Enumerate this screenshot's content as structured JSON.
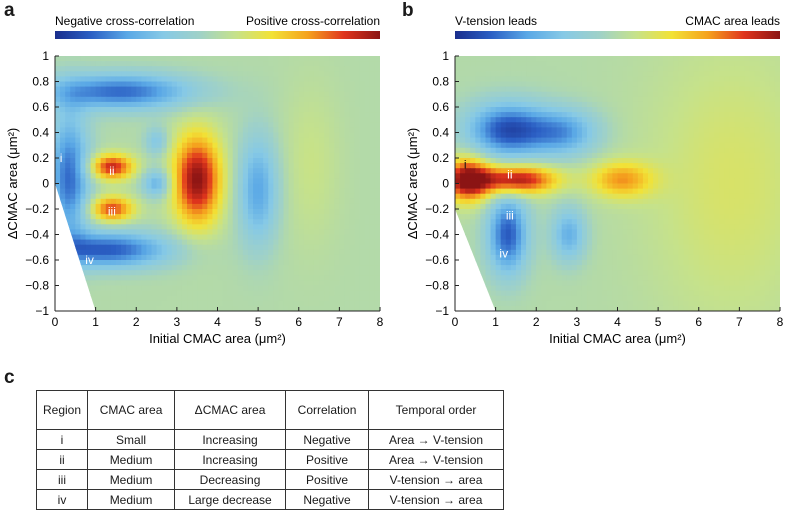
{
  "panels": {
    "a": {
      "letter": "a"
    },
    "b": {
      "letter": "b"
    },
    "c": {
      "letter": "c"
    }
  },
  "colors": {
    "cmap": [
      "#1a2e8c",
      "#2b5fc4",
      "#5aa8e6",
      "#86c9e6",
      "#9fd1c8",
      "#c6e28a",
      "#f2e236",
      "#f5a21e",
      "#e0351d",
      "#8b1414"
    ],
    "background": "#86c9e6"
  },
  "chart_data": [
    {
      "type": "heatmap",
      "panel": "a",
      "colorbar": {
        "left_label": "Negative cross-correlation",
        "right_label": "Positive cross-correlation"
      },
      "xlabel": "Initial CMAC area (μm²)",
      "ylabel": "ΔCMAC area (μm²)",
      "xlim": [
        0,
        8
      ],
      "ylim": [
        -1,
        1
      ],
      "xticks": [
        "0",
        "1",
        "2",
        "3",
        "4",
        "5",
        "6",
        "7",
        "8"
      ],
      "yticks": [
        "−1",
        "−0.8",
        "−0.6",
        "−0.4",
        "−0.2",
        "0",
        "0.2",
        "0.4",
        "0.6",
        "0.8",
        "1"
      ],
      "value_range": [
        -1,
        1
      ],
      "features": [
        {
          "x": 1.6,
          "y": 0.72,
          "value": -0.75,
          "sx": 1.3,
          "sy": 0.1
        },
        {
          "x": 0.35,
          "y": 0.05,
          "value": -0.75,
          "sx": 0.35,
          "sy": 0.35
        },
        {
          "x": 1.3,
          "y": -0.52,
          "value": -0.8,
          "sx": 1.1,
          "sy": 0.1
        },
        {
          "x": 1.4,
          "y": 0.13,
          "value": 0.85,
          "sx": 0.38,
          "sy": 0.07
        },
        {
          "x": 1.4,
          "y": -0.2,
          "value": 0.75,
          "sx": 0.38,
          "sy": 0.07
        },
        {
          "x": 2.5,
          "y": 0.0,
          "value": -0.5,
          "sx": 0.25,
          "sy": 0.08
        },
        {
          "x": 2.5,
          "y": 0.33,
          "value": -0.35,
          "sx": 0.2,
          "sy": 0.08
        },
        {
          "x": 3.5,
          "y": 0.03,
          "value": 1.0,
          "sx": 0.42,
          "sy": 0.25
        },
        {
          "x": 5.0,
          "y": -0.05,
          "value": -0.55,
          "sx": 0.35,
          "sy": 0.3
        },
        {
          "x": 6.3,
          "y": 0.15,
          "value": 0.12,
          "sx": 0.5,
          "sy": 0.45
        }
      ],
      "region_labels": [
        {
          "text": "i",
          "x": 0.15,
          "y": 0.2
        },
        {
          "text": "ii",
          "x": 1.4,
          "y": 0.1
        },
        {
          "text": "iii",
          "x": 1.4,
          "y": -0.22
        },
        {
          "text": "iv",
          "x": 0.85,
          "y": -0.6
        }
      ]
    },
    {
      "type": "heatmap",
      "panel": "b",
      "colorbar": {
        "left_label": "V-tension leads",
        "right_label": "CMAC area leads"
      },
      "xlabel": "Initial CMAC area (μm²)",
      "ylabel": "ΔCMAC area (μm²)",
      "xlim": [
        0,
        8
      ],
      "ylim": [
        -1,
        1
      ],
      "xticks": [
        "0",
        "1",
        "2",
        "3",
        "4",
        "5",
        "6",
        "7",
        "8"
      ],
      "yticks": [
        "−1",
        "−0.8",
        "−0.6",
        "−0.4",
        "−0.2",
        "0",
        "0.2",
        "0.4",
        "0.6",
        "0.8",
        "1"
      ],
      "value_range": [
        -1,
        1
      ],
      "features": [
        {
          "x": 0.3,
          "y": 0.03,
          "value": 1.0,
          "sx": 0.4,
          "sy": 0.12
        },
        {
          "x": 1.5,
          "y": 0.03,
          "value": 1.0,
          "sx": 0.7,
          "sy": 0.08
        },
        {
          "x": 1.3,
          "y": 0.42,
          "value": -0.85,
          "sx": 0.7,
          "sy": 0.15
        },
        {
          "x": 2.7,
          "y": 0.4,
          "value": -0.55,
          "sx": 0.6,
          "sy": 0.13
        },
        {
          "x": 1.3,
          "y": -0.4,
          "value": -0.8,
          "sx": 0.35,
          "sy": 0.22
        },
        {
          "x": 2.8,
          "y": -0.4,
          "value": -0.5,
          "sx": 0.3,
          "sy": 0.15
        },
        {
          "x": 4.1,
          "y": 0.03,
          "value": 0.55,
          "sx": 0.55,
          "sy": 0.1
        },
        {
          "x": 6.8,
          "y": 0.0,
          "value": 0.2,
          "sx": 1.5,
          "sy": 0.8
        }
      ],
      "region_labels": [
        {
          "text": "i",
          "x": 0.25,
          "y": 0.15
        },
        {
          "text": "ii",
          "x": 1.35,
          "y": 0.07
        },
        {
          "text": "iii",
          "x": 1.35,
          "y": -0.25
        },
        {
          "text": "iv",
          "x": 1.2,
          "y": -0.55
        }
      ]
    }
  ],
  "table": {
    "header": [
      "Region",
      "CMAC area",
      "ΔCMAC area",
      "Correlation",
      "Temporal order"
    ],
    "rows": [
      [
        "i",
        "Small",
        "Increasing",
        "Negative",
        "Area → V-tension"
      ],
      [
        "ii",
        "Medium",
        "Increasing",
        "Positive",
        "Area → V-tension"
      ],
      [
        "iii",
        "Medium",
        "Decreasing",
        "Positive",
        "V-tension → area"
      ],
      [
        "iv",
        "Medium",
        "Large decrease",
        "Negative",
        "V-tension → area"
      ]
    ]
  }
}
